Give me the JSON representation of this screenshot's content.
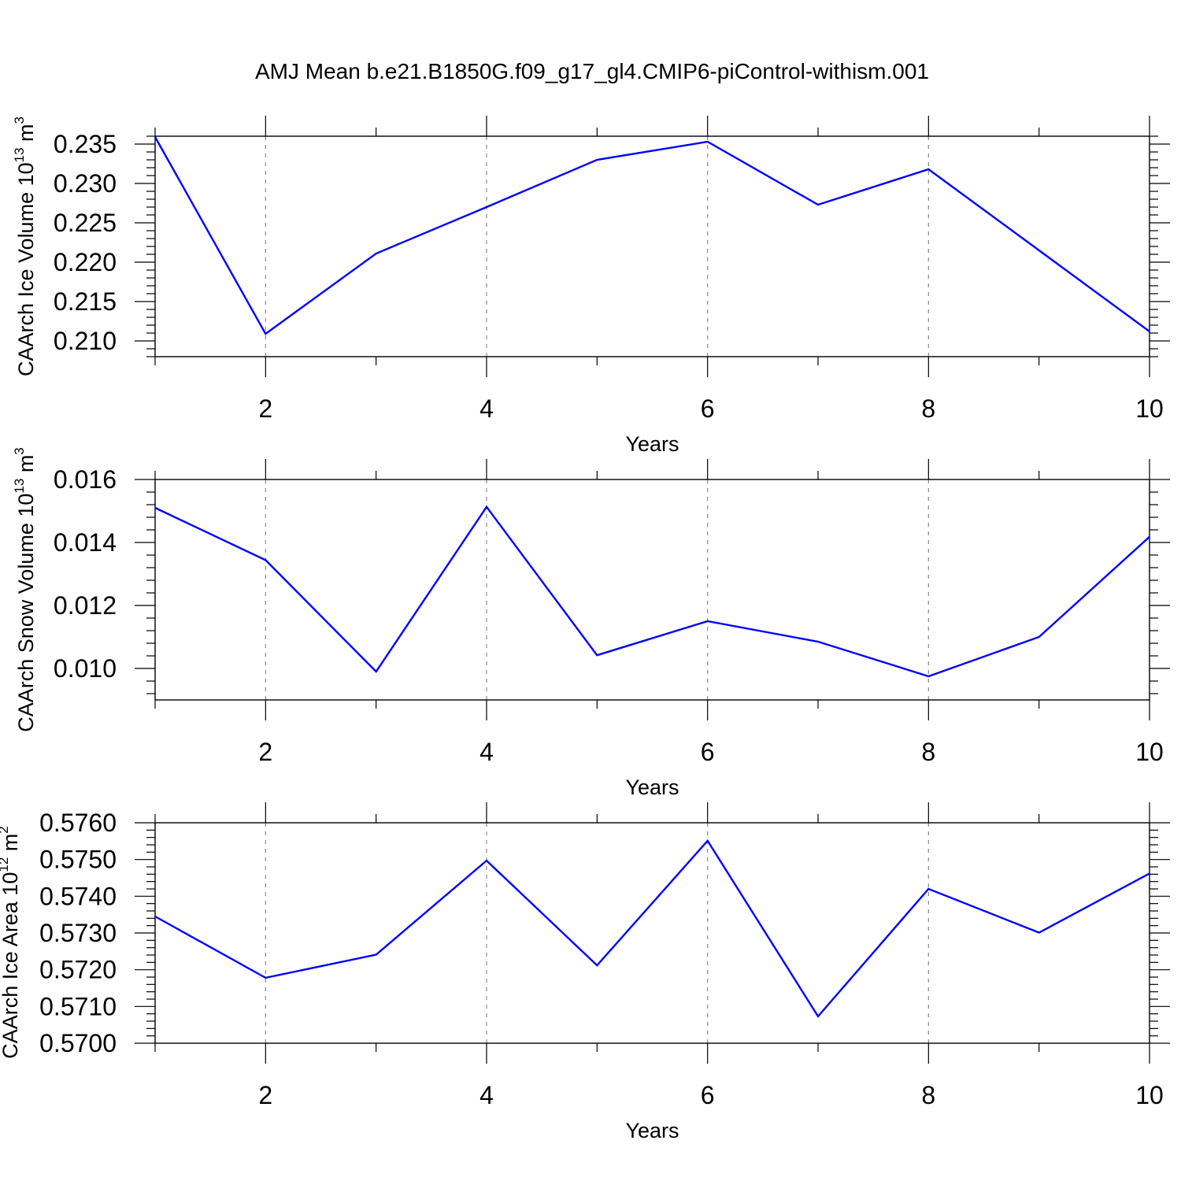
{
  "figure": {
    "title": "AMJ Mean b.e21.B1850G.f09_g17_gl4.CMIP6-piControl-withism.001"
  },
  "chart_data": [
    {
      "type": "line",
      "ylabel": {
        "text": "CAArch Ice Volume 10",
        "exponent": "13",
        "unit": " m",
        "unit_exponent": "3"
      },
      "xlabel": "Years",
      "xlim": [
        1,
        10
      ],
      "ylim": [
        0.208,
        0.236
      ],
      "x_ticks": [
        2,
        4,
        6,
        8,
        10
      ],
      "x_tick_labels": [
        "2",
        "4",
        "6",
        "8",
        "10"
      ],
      "y_ticks": [
        0.21,
        0.215,
        0.22,
        0.225,
        0.23,
        0.235
      ],
      "y_tick_labels": [
        "0.210",
        "0.215",
        "0.220",
        "0.225",
        "0.230",
        "0.235"
      ],
      "series": [
        {
          "color": "#0000ff",
          "x": [
            1,
            2,
            3,
            4,
            5,
            6,
            7,
            8,
            9,
            10
          ],
          "y": [
            0.2359,
            0.2109,
            0.2211,
            0.227,
            0.233,
            0.2353,
            0.2273,
            0.2318,
            0.2215,
            0.2112
          ]
        }
      ]
    },
    {
      "type": "line",
      "ylabel": {
        "text": "CAArch Snow Volume 10",
        "exponent": "13",
        "unit": " m",
        "unit_exponent": "3"
      },
      "xlabel": "Years",
      "xlim": [
        1,
        10
      ],
      "ylim": [
        0.009,
        0.016
      ],
      "x_ticks": [
        2,
        4,
        6,
        8,
        10
      ],
      "x_tick_labels": [
        "2",
        "4",
        "6",
        "8",
        "10"
      ],
      "y_ticks": [
        0.01,
        0.012,
        0.014,
        0.016
      ],
      "y_tick_labels": [
        "0.010",
        "0.012",
        "0.014",
        "0.016"
      ],
      "series": [
        {
          "color": "#0000ff",
          "x": [
            1,
            2,
            3,
            4,
            5,
            6,
            7,
            8,
            9,
            10
          ],
          "y": [
            0.0151,
            0.01344,
            0.0099,
            0.01513,
            0.01042,
            0.0115,
            0.01085,
            0.00975,
            0.011,
            0.01418
          ]
        }
      ]
    },
    {
      "type": "line",
      "ylabel": {
        "text": "CAArch Ice Area 10",
        "exponent": "12",
        "unit": " m",
        "unit_exponent": "2"
      },
      "xlabel": "Years",
      "xlim": [
        1,
        10
      ],
      "ylim": [
        0.57,
        0.576
      ],
      "x_ticks": [
        2,
        4,
        6,
        8,
        10
      ],
      "x_tick_labels": [
        "2",
        "4",
        "6",
        "8",
        "10"
      ],
      "y_ticks": [
        0.57,
        0.571,
        0.572,
        0.573,
        0.574,
        0.575,
        0.576
      ],
      "y_tick_labels": [
        "0.5700",
        "0.5710",
        "0.5720",
        "0.5730",
        "0.5740",
        "0.5750",
        "0.5760"
      ],
      "series": [
        {
          "color": "#0000ff",
          "x": [
            1,
            2,
            3,
            4,
            5,
            6,
            7,
            8,
            9,
            10
          ],
          "y": [
            0.57345,
            0.57178,
            0.57241,
            0.57497,
            0.57212,
            0.57551,
            0.57073,
            0.5742,
            0.57301,
            0.57462
          ]
        }
      ]
    }
  ]
}
